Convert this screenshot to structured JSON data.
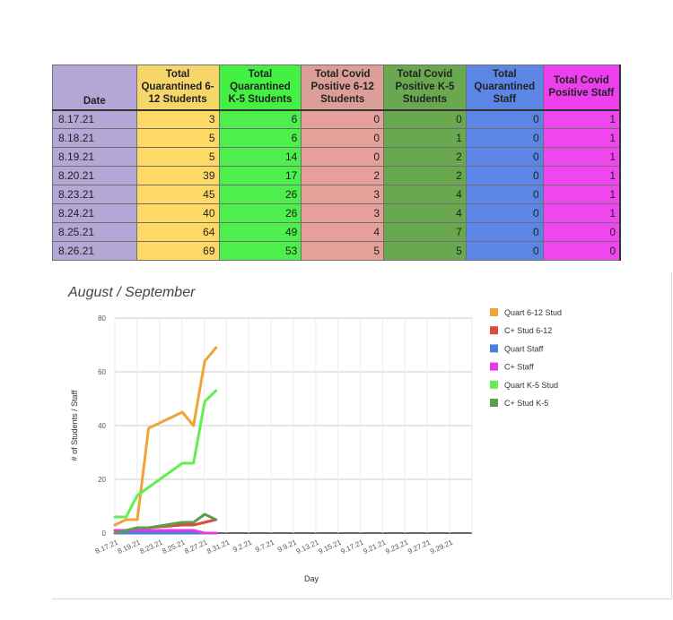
{
  "table": {
    "headers": [
      {
        "key": "date",
        "label": "Date"
      },
      {
        "key": "q612",
        "label": "Total Quarantined 6-12 Students"
      },
      {
        "key": "qk5",
        "label": "Total Quarantined K-5 Students"
      },
      {
        "key": "p612",
        "label": "Total Covid Positive 6-12 Students"
      },
      {
        "key": "pk5",
        "label": "Total Covid Positive K-5 Students"
      },
      {
        "key": "qstf",
        "label": "Total Quarantined Staff"
      },
      {
        "key": "pstf",
        "label": "Total Covid Positive Staff"
      }
    ],
    "rows": [
      [
        "8.17.21",
        "3",
        "6",
        "0",
        "0",
        "0",
        "1"
      ],
      [
        "8.18.21",
        "5",
        "6",
        "0",
        "1",
        "0",
        "1"
      ],
      [
        "8.19.21",
        "5",
        "14",
        "0",
        "2",
        "0",
        "1"
      ],
      [
        "8.20.21",
        "39",
        "17",
        "2",
        "2",
        "0",
        "1"
      ],
      [
        "8.23.21",
        "45",
        "26",
        "3",
        "4",
        "0",
        "1"
      ],
      [
        "8.24.21",
        "40",
        "26",
        "3",
        "4",
        "0",
        "1"
      ],
      [
        "8.25.21",
        "64",
        "49",
        "4",
        "7",
        "0",
        "0"
      ],
      [
        "8.26.21",
        "69",
        "53",
        "5",
        "5",
        "0",
        "0"
      ]
    ]
  },
  "chart_data": {
    "type": "line",
    "title": "August / September",
    "xlabel": "Day",
    "ylabel": "# of Students / Staff",
    "ylim": [
      0,
      80
    ],
    "yticks": [
      0,
      20,
      40,
      60,
      80
    ],
    "grid": true,
    "legend_position": "right",
    "x": [
      "8.17.21",
      "8.18.21",
      "8.19.21",
      "8.20.21",
      "8.23.21",
      "8.24.21",
      "8.25.21",
      "8.26.21"
    ],
    "xtick_labels": [
      "8.17.21",
      "8.19.21",
      "8.23.21",
      "8.25.21",
      "8.27.21",
      "8.31.21",
      "9.2.21",
      "9.7.21",
      "9.9.21",
      "9.13.21",
      "9.15.21",
      "9.17.21",
      "9.21.21",
      "9.23.21",
      "9.27.21",
      "9.29.21"
    ],
    "series": [
      {
        "name": "Quart 6-12 Stud",
        "color": "#f0a33a",
        "values": [
          3,
          5,
          5,
          39,
          45,
          40,
          64,
          69
        ]
      },
      {
        "name": "C+ Stud 6-12",
        "color": "#dc4b3e",
        "values": [
          0,
          0,
          0,
          2,
          3,
          3,
          4,
          5
        ]
      },
      {
        "name": "Quart Staff",
        "color": "#4a7fe0",
        "values": [
          0,
          0,
          0,
          0,
          0,
          0,
          0,
          0
        ]
      },
      {
        "name": "C+ Staff",
        "color": "#e53ae5",
        "values": [
          1,
          1,
          1,
          1,
          1,
          1,
          0,
          0
        ]
      },
      {
        "name": "Quart K-5 Stud",
        "color": "#63ee52",
        "values": [
          6,
          6,
          14,
          17,
          26,
          26,
          49,
          53
        ]
      },
      {
        "name": "C+ Stud K-5",
        "color": "#5c9e4b",
        "values": [
          0,
          1,
          2,
          2,
          4,
          4,
          7,
          5
        ]
      }
    ]
  }
}
